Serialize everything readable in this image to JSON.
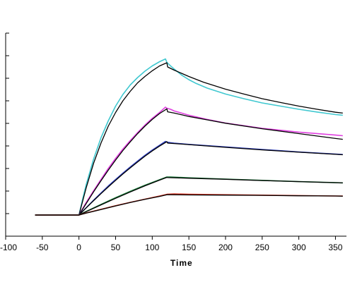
{
  "chart_data": {
    "type": "line",
    "xlabel": "Time",
    "ylabel": "",
    "xlim": [
      -100,
      365
    ],
    "ylim": [
      -1,
      8.6
    ],
    "x_ticks": [
      -100,
      -50,
      0,
      50,
      100,
      150,
      200,
      250,
      300,
      350
    ],
    "y_tick_count": 10,
    "grid": false,
    "legend": "none",
    "series": [
      {
        "role": "measured",
        "color": "#40c8d0",
        "x": [
          -60,
          -40,
          -20,
          0,
          5,
          10,
          20,
          30,
          40,
          50,
          60,
          70,
          80,
          90,
          100,
          110,
          118,
          120,
          125,
          130,
          140,
          150,
          160,
          175,
          200,
          225,
          250,
          275,
          300,
          325,
          350,
          360
        ],
        "y": [
          0,
          0,
          0,
          0,
          0.75,
          1.45,
          2.65,
          3.65,
          4.45,
          5.15,
          5.7,
          6.15,
          6.5,
          6.8,
          7.05,
          7.25,
          7.38,
          7.22,
          7.05,
          6.9,
          6.62,
          6.4,
          6.22,
          6.0,
          5.72,
          5.5,
          5.3,
          5.15,
          5.0,
          4.87,
          4.75,
          4.72
        ]
      },
      {
        "role": "fit",
        "color": "#000000",
        "x": [
          -60,
          -40,
          -20,
          0,
          10,
          20,
          30,
          40,
          50,
          60,
          70,
          80,
          90,
          100,
          110,
          120,
          121,
          130,
          140,
          150,
          170,
          200,
          225,
          250,
          275,
          300,
          325,
          350,
          360
        ],
        "y": [
          0,
          0,
          0,
          0,
          1.3,
          2.45,
          3.4,
          4.2,
          4.85,
          5.4,
          5.85,
          6.25,
          6.55,
          6.82,
          7.05,
          7.2,
          7.0,
          6.85,
          6.7,
          6.55,
          6.28,
          5.95,
          5.72,
          5.5,
          5.32,
          5.15,
          5.0,
          4.86,
          4.82
        ]
      },
      {
        "role": "measured",
        "color": "#e040e0",
        "x": [
          -60,
          -20,
          0,
          10,
          20,
          30,
          40,
          50,
          60,
          70,
          80,
          90,
          100,
          110,
          118,
          120,
          125,
          130,
          140,
          150,
          175,
          200,
          250,
          300,
          350,
          360
        ],
        "y": [
          0,
          0,
          0,
          0.6,
          1.15,
          1.68,
          2.2,
          2.68,
          3.12,
          3.52,
          3.9,
          4.25,
          4.57,
          4.85,
          5.1,
          5.05,
          5.0,
          4.92,
          4.82,
          4.72,
          4.52,
          4.35,
          4.1,
          3.92,
          3.78,
          3.75
        ]
      },
      {
        "role": "fit",
        "color": "#000000",
        "x": [
          -60,
          -20,
          0,
          10,
          20,
          30,
          40,
          50,
          60,
          70,
          80,
          90,
          100,
          110,
          120,
          121,
          130,
          140,
          150,
          175,
          200,
          250,
          300,
          350,
          360
        ],
        "y": [
          0,
          0,
          0,
          0.55,
          1.1,
          1.62,
          2.12,
          2.6,
          3.05,
          3.46,
          3.85,
          4.2,
          4.52,
          4.8,
          5.02,
          4.88,
          4.82,
          4.74,
          4.66,
          4.5,
          4.34,
          4.08,
          3.85,
          3.62,
          3.58
        ]
      },
      {
        "role": "measured",
        "color": "#3040c0",
        "x": [
          -60,
          -20,
          0,
          10,
          20,
          30,
          40,
          50,
          60,
          70,
          80,
          90,
          100,
          110,
          118,
          120,
          125,
          130,
          150,
          200,
          250,
          300,
          350,
          360
        ],
        "y": [
          0,
          0,
          0,
          0.35,
          0.7,
          1.04,
          1.37,
          1.68,
          1.98,
          2.27,
          2.55,
          2.82,
          3.07,
          3.3,
          3.48,
          3.45,
          3.42,
          3.4,
          3.34,
          3.22,
          3.1,
          2.98,
          2.88,
          2.86
        ]
      },
      {
        "role": "fit",
        "color": "#000000",
        "x": [
          -60,
          -20,
          0,
          10,
          20,
          30,
          40,
          50,
          60,
          70,
          80,
          90,
          100,
          110,
          120,
          121,
          130,
          150,
          200,
          250,
          300,
          350,
          360
        ],
        "y": [
          0,
          0,
          0,
          0.34,
          0.68,
          1.01,
          1.33,
          1.64,
          1.94,
          2.23,
          2.51,
          2.78,
          3.03,
          3.26,
          3.47,
          3.4,
          3.38,
          3.33,
          3.2,
          3.08,
          2.97,
          2.87,
          2.85
        ]
      },
      {
        "role": "measured",
        "color": "#208040",
        "x": [
          -60,
          -20,
          0,
          10,
          30,
          50,
          70,
          90,
          110,
          120,
          125,
          150,
          200,
          250,
          300,
          350,
          360
        ],
        "y": [
          0,
          0,
          0,
          0.17,
          0.5,
          0.82,
          1.12,
          1.41,
          1.67,
          1.8,
          1.8,
          1.76,
          1.7,
          1.64,
          1.58,
          1.53,
          1.52
        ]
      },
      {
        "role": "fit",
        "color": "#000000",
        "x": [
          -60,
          -20,
          0,
          10,
          30,
          50,
          70,
          90,
          110,
          120,
          121,
          150,
          200,
          250,
          300,
          350,
          360
        ],
        "y": [
          0,
          0,
          0,
          0.16,
          0.48,
          0.79,
          1.09,
          1.38,
          1.65,
          1.78,
          1.77,
          1.74,
          1.69,
          1.63,
          1.58,
          1.53,
          1.52
        ]
      },
      {
        "role": "measured",
        "color": "#d03020",
        "x": [
          -60,
          -20,
          0,
          10,
          30,
          50,
          70,
          90,
          110,
          120,
          130,
          150,
          200,
          250,
          300,
          350,
          360
        ],
        "y": [
          0,
          0,
          0,
          0.1,
          0.27,
          0.44,
          0.6,
          0.75,
          0.9,
          0.98,
          1.0,
          0.98,
          0.96,
          0.94,
          0.92,
          0.9,
          0.9
        ]
      },
      {
        "role": "fit",
        "color": "#000000",
        "x": [
          -60,
          -20,
          0,
          10,
          30,
          50,
          70,
          90,
          110,
          120,
          121,
          150,
          200,
          250,
          300,
          350,
          360
        ],
        "y": [
          0,
          0,
          0,
          0.09,
          0.26,
          0.43,
          0.59,
          0.74,
          0.88,
          0.96,
          0.96,
          0.95,
          0.94,
          0.93,
          0.91,
          0.9,
          0.89
        ]
      }
    ]
  }
}
